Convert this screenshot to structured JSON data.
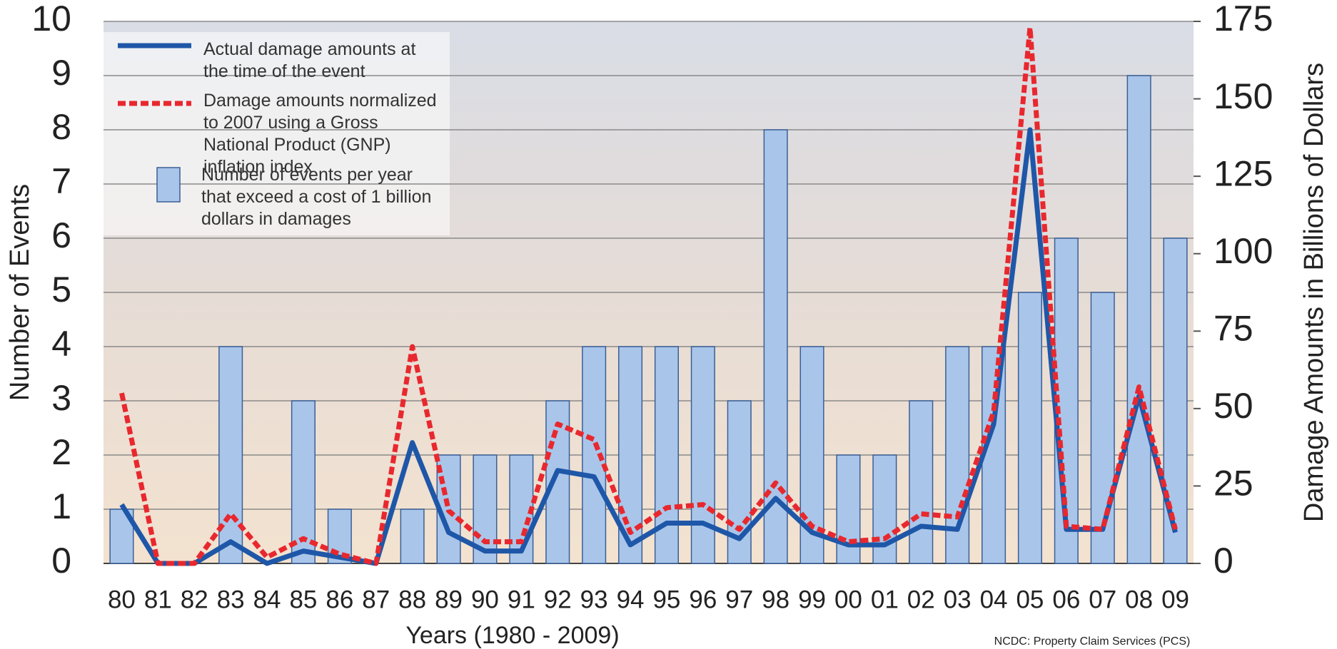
{
  "chart_data": {
    "type": "bar",
    "x_label": "Years (1980 - 2009)",
    "y_label": "Number of Events",
    "y2_label": "Damage Amounts in Billions of Dollars",
    "source": "NCDC: Property Claim Services (PCS)",
    "categories": [
      "80",
      "81",
      "82",
      "83",
      "84",
      "85",
      "86",
      "87",
      "88",
      "89",
      "90",
      "91",
      "92",
      "93",
      "94",
      "95",
      "96",
      "97",
      "98",
      "99",
      "00",
      "01",
      "02",
      "03",
      "04",
      "05",
      "06",
      "07",
      "08",
      "09"
    ],
    "ylim": [
      0,
      10
    ],
    "yticks": [
      0,
      1,
      2,
      3,
      4,
      5,
      6,
      7,
      8,
      9,
      10
    ],
    "y2lim": [
      0,
      175
    ],
    "y2ticks": [
      0,
      25,
      50,
      75,
      100,
      125,
      150,
      175
    ],
    "grid": true,
    "series": [
      {
        "name": "Actual damage amounts at the time of the event",
        "type": "line",
        "axis": "y2",
        "color": "#1f57a8",
        "style": "solid",
        "values": [
          19,
          0,
          0,
          7,
          0,
          4,
          2,
          0,
          39,
          10,
          4,
          4,
          30,
          28,
          6,
          13,
          13,
          8,
          21,
          10,
          6,
          6,
          12,
          11,
          45,
          140,
          11,
          11,
          54,
          10
        ]
      },
      {
        "name": "Damage amounts normalized to 2007 using a Gross National Product (GNP) inflation index",
        "type": "line",
        "axis": "y2",
        "color": "#e8282e",
        "style": "dashed",
        "values": [
          55,
          0,
          0,
          16,
          2,
          8,
          3,
          0,
          70,
          17,
          7,
          7,
          45,
          40,
          10,
          18,
          19,
          11,
          26,
          12,
          7,
          8,
          16,
          15,
          49,
          173,
          12,
          11,
          57,
          11
        ]
      },
      {
        "name": "Number of events per year that exceed a cost of 1 billion dollars in damages",
        "type": "bar",
        "axis": "y",
        "color": "#a9c6ea",
        "values": [
          1,
          0,
          0,
          4,
          0,
          3,
          1,
          0,
          1,
          2,
          2,
          2,
          3,
          4,
          4,
          4,
          4,
          3,
          8,
          4,
          2,
          2,
          3,
          4,
          4,
          5,
          6,
          5,
          9,
          6
        ]
      }
    ]
  }
}
